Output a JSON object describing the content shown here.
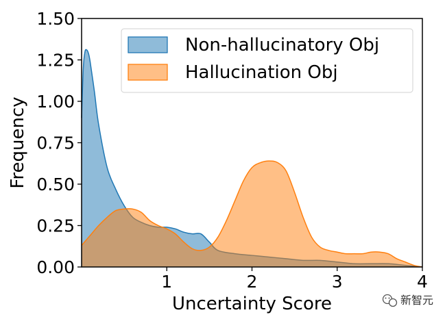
{
  "chart_data": {
    "type": "area",
    "title": "",
    "xlabel": "Uncertainty Score",
    "ylabel": "Frequency",
    "xlim": [
      0,
      4
    ],
    "ylim": [
      0,
      1.5
    ],
    "xticks": [
      1,
      2,
      3,
      4
    ],
    "xtick_labels": [
      "1",
      "2",
      "3",
      "4"
    ],
    "yticks": [
      0,
      0.25,
      0.5,
      0.75,
      1.0,
      1.25,
      1.5
    ],
    "ytick_labels": [
      "0.00",
      "0.25",
      "0.50",
      "0.75",
      "1.00",
      "1.25",
      "1.50"
    ],
    "grid": false,
    "legend_position": "top-right",
    "series": [
      {
        "name": "Non-hallucinatory Obj",
        "color": "#1f77b4",
        "fill_opacity": 0.5,
        "x": [
          0,
          0.02,
          0.04,
          0.06,
          0.08,
          0.1,
          0.15,
          0.2,
          0.3,
          0.4,
          0.5,
          0.6,
          0.7,
          0.8,
          0.9,
          1.0,
          1.1,
          1.2,
          1.3,
          1.4,
          1.5,
          1.6,
          1.8,
          2.0,
          2.2,
          2.4,
          2.6,
          2.8,
          3.0,
          3.2,
          3.4,
          3.6,
          3.8,
          4.0
        ],
        "y": [
          0.9,
          1.2,
          1.3,
          1.31,
          1.29,
          1.24,
          1.06,
          0.86,
          0.6,
          0.47,
          0.37,
          0.3,
          0.27,
          0.25,
          0.24,
          0.24,
          0.23,
          0.21,
          0.2,
          0.2,
          0.15,
          0.1,
          0.08,
          0.07,
          0.06,
          0.05,
          0.04,
          0.04,
          0.03,
          0.02,
          0.02,
          0.02,
          0.01,
          0.0
        ]
      },
      {
        "name": "Hallucination Obj",
        "color": "#ff7f0e",
        "fill_opacity": 0.5,
        "x": [
          0,
          0.1,
          0.2,
          0.3,
          0.4,
          0.5,
          0.6,
          0.7,
          0.8,
          0.9,
          1.0,
          1.1,
          1.2,
          1.3,
          1.4,
          1.5,
          1.6,
          1.7,
          1.8,
          1.9,
          2.0,
          2.1,
          2.2,
          2.3,
          2.4,
          2.5,
          2.6,
          2.7,
          2.8,
          2.9,
          3.0,
          3.1,
          3.2,
          3.3,
          3.4,
          3.5,
          3.6,
          3.7,
          3.8,
          3.9,
          4.0
        ],
        "y": [
          0.13,
          0.19,
          0.25,
          0.3,
          0.34,
          0.35,
          0.35,
          0.33,
          0.28,
          0.25,
          0.23,
          0.2,
          0.15,
          0.11,
          0.1,
          0.12,
          0.18,
          0.28,
          0.4,
          0.52,
          0.6,
          0.63,
          0.64,
          0.63,
          0.58,
          0.45,
          0.3,
          0.18,
          0.12,
          0.1,
          0.09,
          0.08,
          0.08,
          0.08,
          0.09,
          0.09,
          0.08,
          0.05,
          0.03,
          0.01,
          0.0
        ]
      }
    ]
  },
  "watermark": {
    "text": "新智元",
    "icon": "wechat-icon"
  }
}
